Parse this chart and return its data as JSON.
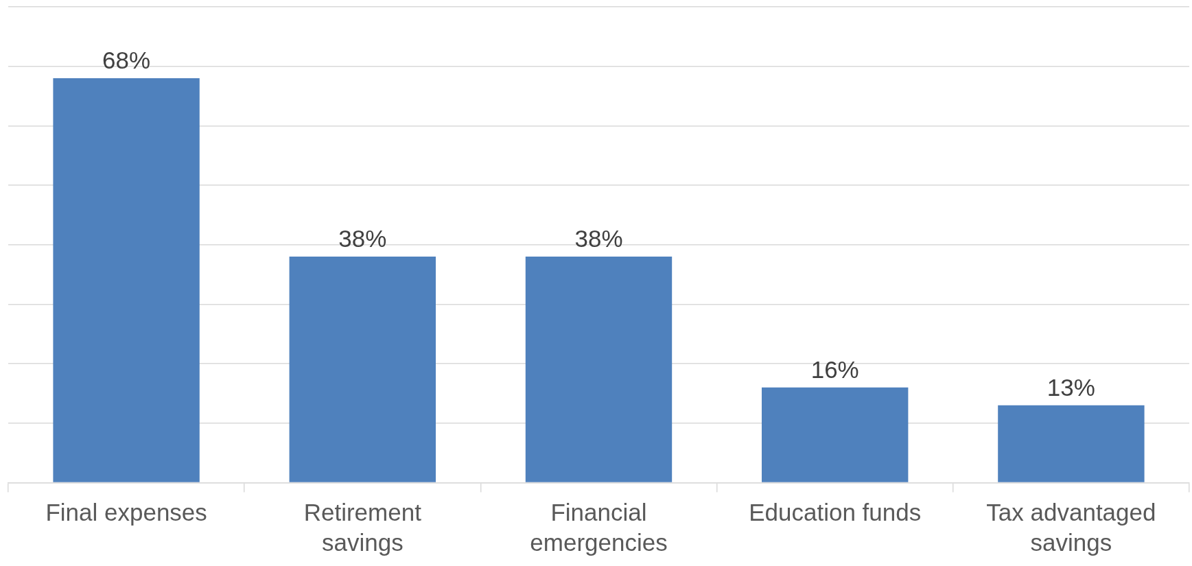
{
  "chart_data": {
    "type": "bar",
    "categories": [
      "Final expenses",
      "Retirement savings",
      "Financial emergencies",
      "Education funds",
      "Tax advantaged savings"
    ],
    "values": [
      68,
      38,
      38,
      16,
      13
    ],
    "color": "#4f81bd",
    "ylim": [
      0,
      80
    ],
    "yticks": [
      {
        "value": 0,
        "label": null
      },
      {
        "value": 10,
        "label": null
      },
      {
        "value": 20,
        "label": null
      },
      {
        "value": 30,
        "label": null
      },
      {
        "value": 40,
        "label": null
      },
      {
        "value": 50,
        "label": null
      },
      {
        "value": 60,
        "label": null
      },
      {
        "value": 70,
        "label": null
      },
      {
        "value": 80,
        "label": null
      }
    ],
    "value_labels": [
      "68%",
      "38%",
      "38%",
      "16%",
      "13%"
    ],
    "grid": "y",
    "tick_labels": "x"
  }
}
